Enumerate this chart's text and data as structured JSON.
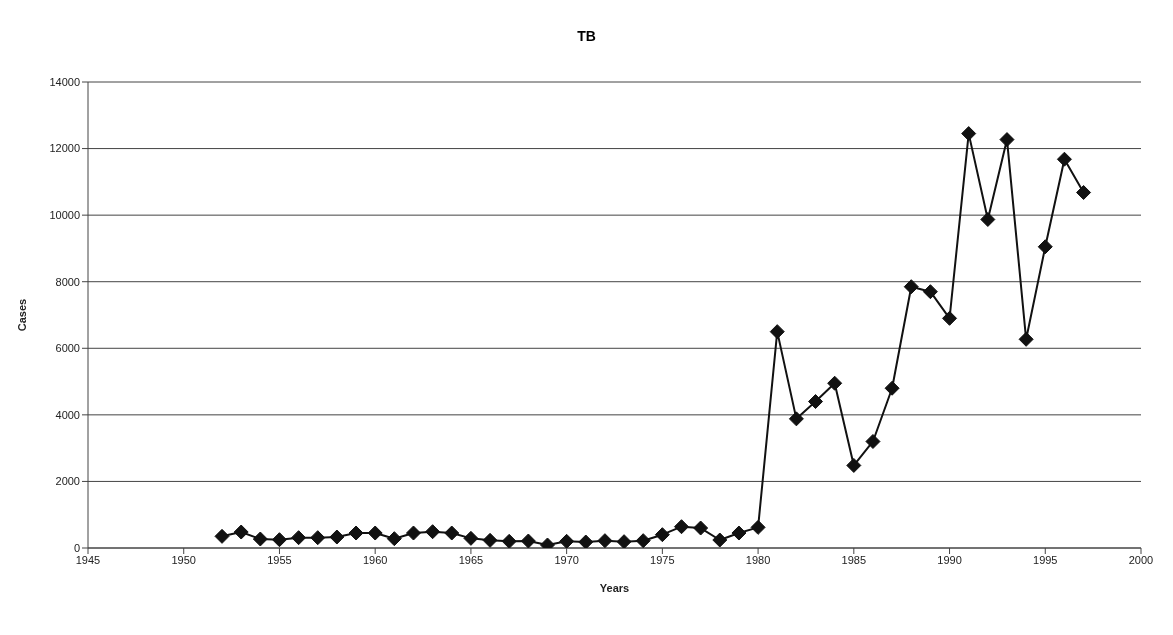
{
  "chart_data": {
    "type": "line",
    "title": "TB",
    "xlabel": "Years",
    "ylabel": "Cases",
    "x": [
      1952,
      1953,
      1954,
      1955,
      1956,
      1957,
      1958,
      1959,
      1960,
      1961,
      1962,
      1963,
      1964,
      1965,
      1966,
      1967,
      1968,
      1969,
      1970,
      1971,
      1972,
      1973,
      1974,
      1975,
      1976,
      1977,
      1978,
      1979,
      1980,
      1981,
      1982,
      1983,
      1984,
      1985,
      1986,
      1987,
      1988,
      1989,
      1990,
      1991,
      1992,
      1993,
      1994,
      1995,
      1996,
      1997
    ],
    "series": [
      {
        "color": "#111111",
        "values": [
          350,
          480,
          270,
          250,
          310,
          310,
          330,
          450,
          450,
          280,
          450,
          490,
          450,
          290,
          230,
          200,
          210,
          90,
          200,
          180,
          220,
          190,
          220,
          400,
          640,
          600,
          240,
          450,
          620,
          6500,
          3880,
          4400,
          4950,
          2480,
          3200,
          4800,
          7850,
          7700,
          6900,
          12450,
          9870,
          12270,
          6270,
          9050,
          11680,
          10680
        ]
      }
    ],
    "xlim": [
      1945,
      2000
    ],
    "xticks": [
      1945,
      1950,
      1955,
      1960,
      1965,
      1970,
      1975,
      1980,
      1985,
      1990,
      1995,
      2000
    ],
    "ylim": [
      0,
      14000
    ],
    "yticks": [
      0,
      2000,
      4000,
      6000,
      8000,
      10000,
      12000,
      14000
    ],
    "grid": "y",
    "legend": false,
    "marker": "diamond",
    "line_style": "solid"
  }
}
